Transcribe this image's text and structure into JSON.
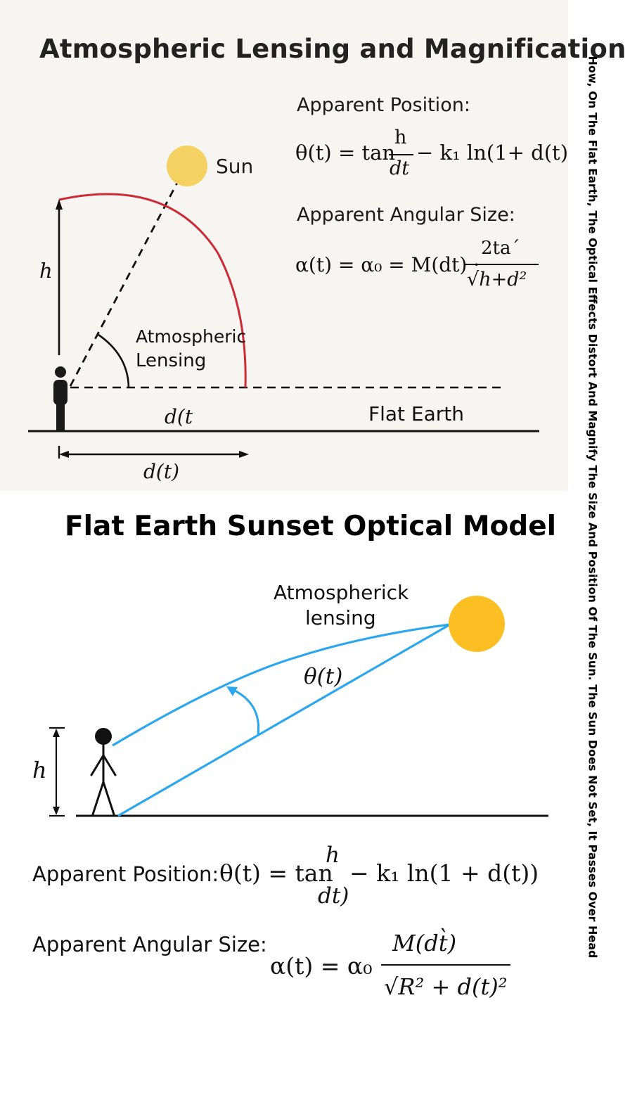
{
  "top": {
    "title": "Atmospheric Lensing and Magnification",
    "sun_label": "Sun",
    "h_label": "h",
    "lensing_label_line1": "Atmospheric",
    "lensing_label_line2": "Lensing",
    "flat_earth_label": "Flat Earth",
    "d_label_upper": "d(t",
    "d_label_lower": "d(t)",
    "apparent_position_heading": "Apparent Position:",
    "apparent_position_lhs": "θ(t) = tan",
    "apparent_position_num": "h",
    "apparent_position_den": "dt",
    "apparent_position_rhs": "− k₁ ln(1+ d(t)",
    "angular_size_heading": "Apparent Angular Size:",
    "angular_size_lhs": "α(t) = α₀ = M(dt) ·",
    "angular_size_num": "2ta´",
    "angular_size_den": "√h+d²"
  },
  "bottom": {
    "title": "Flat Earth Sunset Optical Model",
    "lensing_label_line1": "Atmospherick",
    "lensing_label_line2": "lensing",
    "theta_label": "θ(t)",
    "h_label": "h",
    "apparent_position_heading": "Apparent Position:",
    "apparent_position_lhs": "θ(t) = tan",
    "apparent_position_num": "h",
    "apparent_position_den": "dt)",
    "apparent_position_rhs": "− k₁ ln(1 + d(t))",
    "angular_size_heading": "Apparent Angular Size:",
    "angular_size_lhs": "α(t) = α₀",
    "angular_size_num": "M(dt̀)",
    "angular_size_den": "√R² + d(t)²"
  },
  "side_caption": "How, On The Flat Earth, The Optical Effects Distort And Magnify The Size And Position Of The Sun. The Sun Does Not Set, It Passes Over Head",
  "colors": {
    "sun_top": "#f4d162",
    "sun_bottom": "#fbbf24",
    "red_arc": "#cc2b36",
    "blue_rays": "#2aa7ee",
    "panel_bg": "#f6f5f1"
  }
}
